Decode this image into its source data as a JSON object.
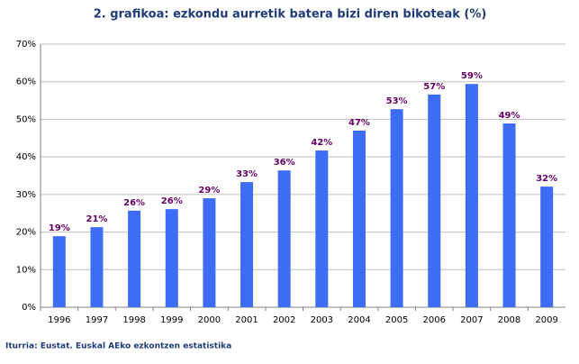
{
  "chart_data": {
    "type": "bar",
    "title": "2. grafikoa: ezkondu aurretik batera bizi diren bikoteak (%)",
    "source": "Iturria: Eustat. Euskal AEko ezkontzen estatistika",
    "categories": [
      "1996",
      "1997",
      "1998",
      "1999",
      "2000",
      "2001",
      "2002",
      "2003",
      "2004",
      "2005",
      "2006",
      "2007",
      "2008",
      "2009"
    ],
    "values": [
      18.9,
      21.3,
      25.7,
      26.1,
      29.0,
      33.3,
      36.4,
      41.7,
      47.0,
      52.7,
      56.6,
      59.4,
      48.9,
      32.1
    ],
    "value_labels": [
      "19%",
      "21%",
      "26%",
      "26%",
      "29%",
      "33%",
      "36%",
      "42%",
      "47%",
      "53%",
      "57%",
      "59%",
      "49%",
      "32%"
    ],
    "color": "#3d6cf5",
    "ylim": [
      0,
      70
    ],
    "yticks": [
      {
        "value": 0,
        "label": "0%"
      },
      {
        "value": 10,
        "label": "10%"
      },
      {
        "value": 20,
        "label": "20%"
      },
      {
        "value": 30,
        "label": "30%"
      },
      {
        "value": 40,
        "label": "40%"
      },
      {
        "value": 50,
        "label": "50%"
      },
      {
        "value": 60,
        "label": "60%"
      },
      {
        "value": 70,
        "label": "70%"
      }
    ],
    "grid": true
  }
}
